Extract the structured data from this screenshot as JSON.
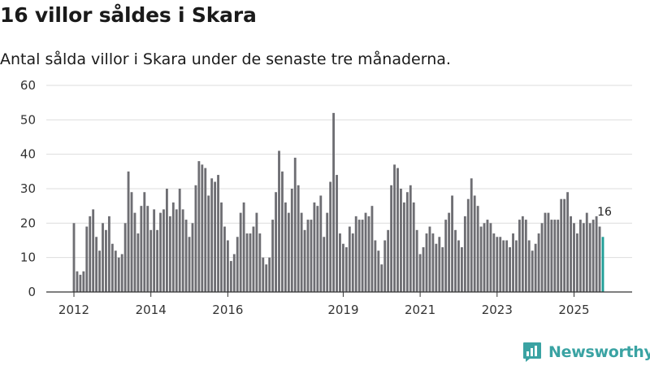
{
  "header": {
    "title": "16 villor såldes i Skara",
    "subtitle": "Antal sålda villor i Skara under de senaste tre månaderna."
  },
  "brand": {
    "name": "Newsworthy",
    "color": "#3aa3a3"
  },
  "colors": {
    "bar": "#6e6e73",
    "highlight": "#1f9e97",
    "grid": "#dddddd",
    "axis": "#333333"
  },
  "chart_data": {
    "type": "bar",
    "title": "16 villor såldes i Skara",
    "subtitle": "Antal sålda villor i Skara under de senaste tre månaderna.",
    "xlabel": "",
    "ylabel": "",
    "ylim": [
      0,
      60
    ],
    "yticks": [
      0,
      10,
      20,
      30,
      40,
      50,
      60
    ],
    "grid": true,
    "start": "2012-01",
    "frequency": "monthly",
    "xtick_labels": [
      {
        "label": "2012",
        "index": 0
      },
      {
        "label": "2014",
        "index": 24
      },
      {
        "label": "2016",
        "index": 48
      },
      {
        "label": "2019",
        "index": 84
      },
      {
        "label": "2021",
        "index": 108
      },
      {
        "label": "2023",
        "index": 132
      },
      {
        "label": "2025",
        "index": 156
      }
    ],
    "values": [
      20,
      6,
      5,
      6,
      19,
      22,
      24,
      16,
      12,
      20,
      18,
      22,
      14,
      12,
      10,
      11,
      20,
      35,
      29,
      23,
      17,
      25,
      29,
      25,
      18,
      24,
      18,
      23,
      24,
      30,
      22,
      26,
      24,
      30,
      24,
      21,
      16,
      20,
      31,
      38,
      37,
      36,
      28,
      33,
      32,
      34,
      26,
      19,
      15,
      9,
      11,
      16,
      23,
      26,
      17,
      17,
      19,
      23,
      17,
      10,
      8,
      10,
      21,
      29,
      41,
      35,
      26,
      23,
      30,
      39,
      31,
      23,
      18,
      21,
      21,
      26,
      25,
      28,
      16,
      23,
      32,
      52,
      34,
      17,
      14,
      13,
      19,
      17,
      22,
      21,
      21,
      23,
      22,
      25,
      15,
      12,
      8,
      15,
      18,
      31,
      37,
      36,
      30,
      26,
      29,
      31,
      26,
      18,
      11,
      13,
      17,
      19,
      17,
      14,
      16,
      13,
      21,
      23,
      28,
      18,
      15,
      13,
      22,
      27,
      33,
      28,
      25,
      19,
      20,
      21,
      20,
      17,
      16,
      16,
      15,
      15,
      13,
      17,
      15,
      21,
      22,
      21,
      15,
      12,
      14,
      17,
      20,
      23,
      23,
      21,
      21,
      21,
      27,
      27,
      29,
      22,
      20,
      17,
      21,
      20,
      23,
      20,
      21,
      22,
      19,
      16
    ],
    "highlight_last": 1,
    "annotation": {
      "index": 165,
      "text": "16"
    }
  }
}
